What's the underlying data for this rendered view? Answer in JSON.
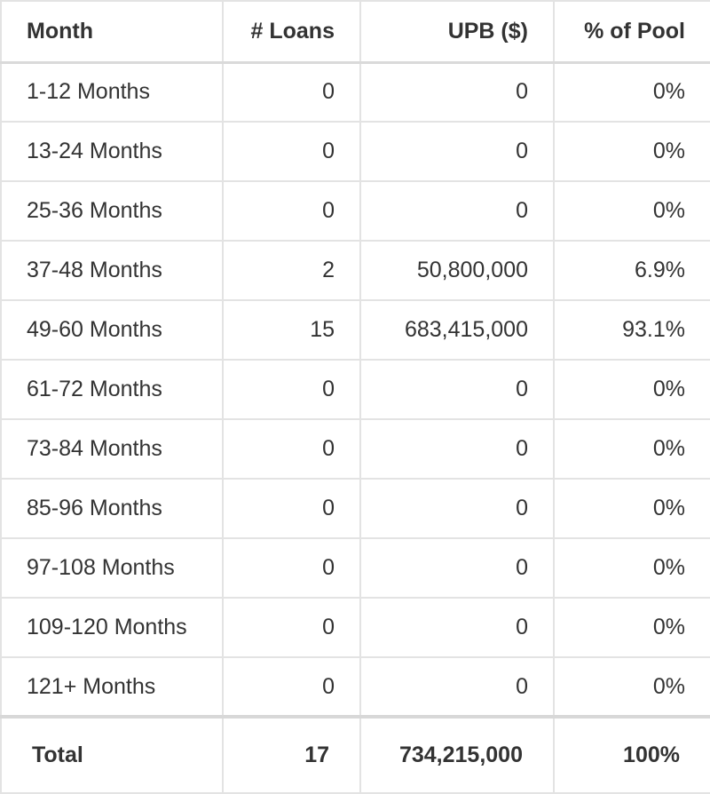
{
  "table": {
    "headers": [
      "Month",
      "# Loans",
      "UPB ($)",
      "% of Pool"
    ],
    "rows": [
      [
        "1-12 Months",
        "0",
        "0",
        "0%"
      ],
      [
        "13-24 Months",
        "0",
        "0",
        "0%"
      ],
      [
        "25-36 Months",
        "0",
        "0",
        "0%"
      ],
      [
        "37-48 Months",
        "2",
        "50,800,000",
        "6.9%"
      ],
      [
        "49-60 Months",
        "15",
        "683,415,000",
        "93.1%"
      ],
      [
        "61-72 Months",
        "0",
        "0",
        "0%"
      ],
      [
        "73-84 Months",
        "0",
        "0",
        "0%"
      ],
      [
        "85-96 Months",
        "0",
        "0",
        "0%"
      ],
      [
        "97-108 Months",
        "0",
        "0",
        "0%"
      ],
      [
        "109-120 Months",
        "0",
        "0",
        "0%"
      ],
      [
        "121+ Months",
        "0",
        "0",
        "0%"
      ]
    ],
    "total": [
      "Total",
      "17",
      "734,215,000",
      "100%"
    ]
  }
}
